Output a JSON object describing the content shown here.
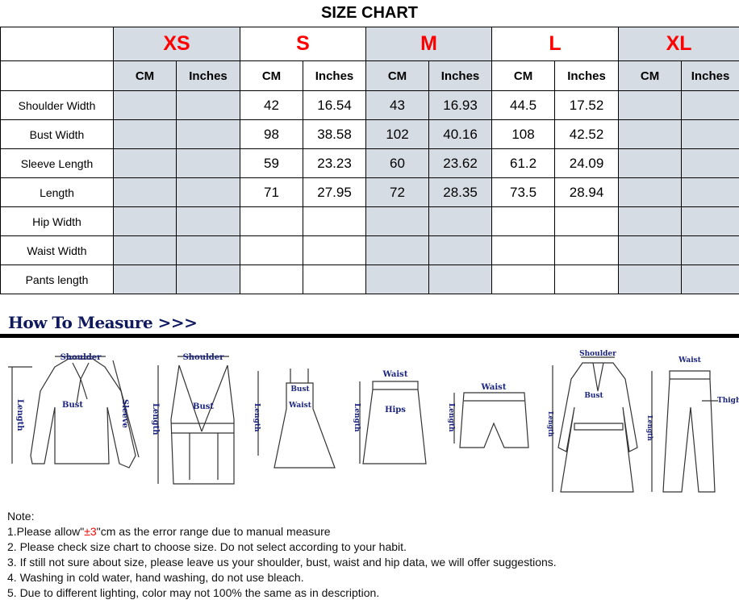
{
  "title": "SIZE CHART",
  "sizes": [
    "XS",
    "S",
    "M",
    "L",
    "XL"
  ],
  "units": [
    "CM",
    "Inches"
  ],
  "rows": [
    {
      "label": "Shoulder Width",
      "values": [
        "",
        "",
        "42",
        "16.54",
        "43",
        "16.93",
        "44.5",
        "17.52",
        "",
        ""
      ]
    },
    {
      "label": "Bust Width",
      "values": [
        "",
        "",
        "98",
        "38.58",
        "102",
        "40.16",
        "108",
        "42.52",
        "",
        ""
      ]
    },
    {
      "label": "Sleeve Length",
      "values": [
        "",
        "",
        "59",
        "23.23",
        "60",
        "23.62",
        "61.2",
        "24.09",
        "",
        ""
      ]
    },
    {
      "label": "Length",
      "values": [
        "",
        "",
        "71",
        "27.95",
        "72",
        "28.35",
        "73.5",
        "28.94",
        "",
        ""
      ]
    },
    {
      "label": "Hip Width",
      "values": [
        "",
        "",
        "",
        "",
        "",
        "",
        "",
        "",
        "",
        ""
      ]
    },
    {
      "label": "Waist Width",
      "values": [
        "",
        "",
        "",
        "",
        "",
        "",
        "",
        "",
        "",
        ""
      ]
    },
    {
      "label": "Pants length",
      "values": [
        "",
        "",
        "",
        "",
        "",
        "",
        "",
        "",
        "",
        ""
      ]
    }
  ],
  "shaded_color": "#d6dce4",
  "size_color": "#ff0000",
  "measure": {
    "title": "How To Measure >>>",
    "labels": {
      "shoulder": "Shoulder",
      "bust": "Bust",
      "sleeve": "Sleeve",
      "length": "Length",
      "waist": "Waist",
      "hips": "Hips",
      "thigh": "Thigh"
    }
  },
  "notes": {
    "heading": "Note:",
    "n1_pre": "1.Please allow\"",
    "n1_red": "±3",
    "n1_post": "\"cm as the error range due to manual measure",
    "n2": "2. Please check size chart to choose size. Do not select according to your habit.",
    "n3": "3. If still not sure about size, please leave us your shoulder, bust, waist and hip data, we will offer suggestions.",
    "n4": "4. Washing in cold water, hand washing, do not use bleach.",
    "n5": "5. Due to different lighting, color may not 100% the same as in description."
  }
}
